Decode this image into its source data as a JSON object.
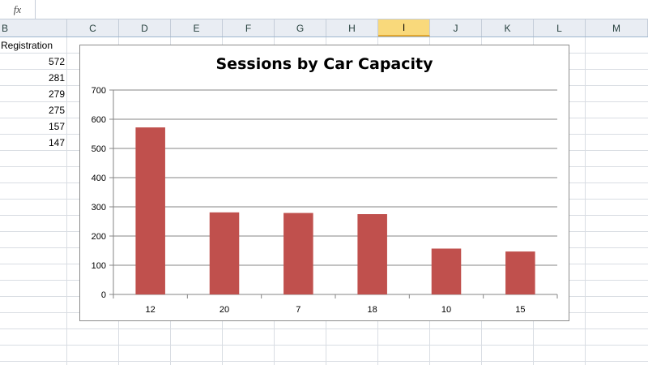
{
  "formula_bar": {
    "fx_label": "fx",
    "content": ""
  },
  "columns": [
    {
      "label": "B"
    },
    {
      "label": "C"
    },
    {
      "label": "D"
    },
    {
      "label": "E"
    },
    {
      "label": "F"
    },
    {
      "label": "G"
    },
    {
      "label": "H"
    },
    {
      "label": "I"
    },
    {
      "label": "J"
    },
    {
      "label": "K"
    },
    {
      "label": "L"
    },
    {
      "label": "M"
    }
  ],
  "selected_column": "I",
  "sheet": {
    "header": "Registration",
    "values": [
      "572",
      "281",
      "279",
      "275",
      "157",
      "147"
    ]
  },
  "colors": {
    "bar": "#c0504d",
    "selected_header": "#f9d97b"
  },
  "chart_data": {
    "type": "bar",
    "title": "Sessions by Car Capacity",
    "categories": [
      "12",
      "20",
      "7",
      "18",
      "10",
      "15"
    ],
    "values": [
      572,
      281,
      279,
      275,
      157,
      147
    ],
    "ylim": [
      0,
      700
    ],
    "yticks": [
      0,
      100,
      200,
      300,
      400,
      500,
      600,
      700
    ],
    "grid": true,
    "legend": "none",
    "xlabel": "",
    "ylabel": ""
  }
}
